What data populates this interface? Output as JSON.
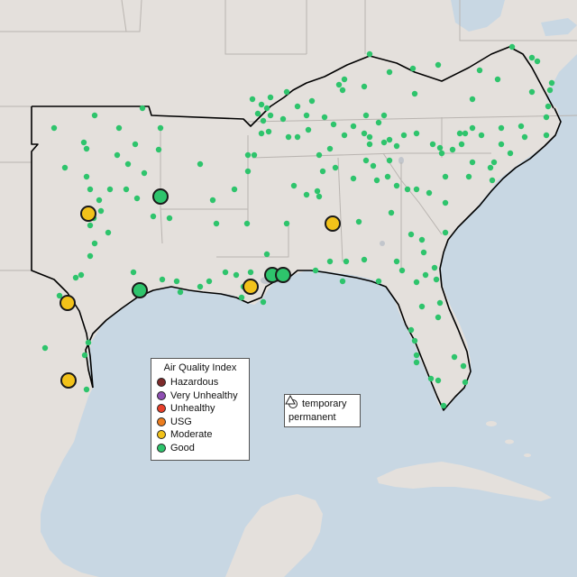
{
  "legend": {
    "title": "Air Quality Index",
    "categories": [
      {
        "label": "Hazardous",
        "color": "#7e2b2b"
      },
      {
        "label": "Very Unhealthy",
        "color": "#8f4fb3"
      },
      {
        "label": "Unhealthy",
        "color": "#e8402a"
      },
      {
        "label": "USG",
        "color": "#ec7d1f"
      },
      {
        "label": "Moderate",
        "color": "#f2c21a"
      },
      {
        "label": "Good",
        "color": "#2ec46c"
      }
    ]
  },
  "monitor_types": {
    "temporary": "temporary",
    "permanent": "permanent"
  },
  "colors": {
    "water": "#c8d7e3",
    "land": "#e4e0dc",
    "state_border": "#bdb8b4",
    "region_outline": "#000000"
  }
}
